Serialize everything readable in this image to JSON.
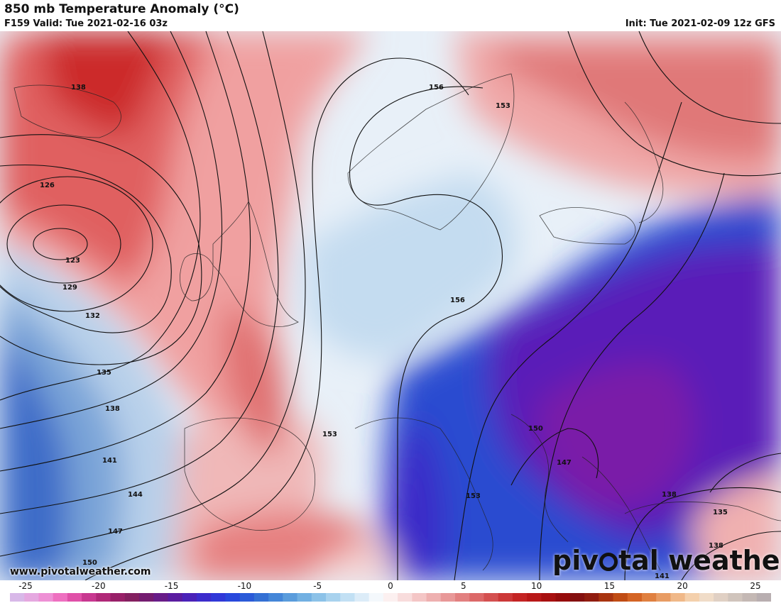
{
  "header": {
    "title": "850 mb Temperature Anomaly (°C)",
    "valid": "F159 Valid: Tue 2021-02-16 03z",
    "init": "Init: Tue 2021-02-09 12z GFS"
  },
  "contour_labels": [
    "138",
    "126",
    "123",
    "129",
    "132",
    "135",
    "138",
    "141",
    "144",
    "147",
    "150",
    "156",
    "153",
    "156",
    "153",
    "153",
    "150",
    "147",
    "138",
    "135",
    "138",
    "141"
  ],
  "footer": {
    "website": "www.pivotalweather.com",
    "brand_part1": "piv",
    "brand_part2": "tal weather"
  },
  "colorbar": {
    "ticks": [
      "-25",
      "-20",
      "-15",
      "-10",
      "-5",
      "0",
      "5",
      "10",
      "15",
      "20",
      "25"
    ],
    "min": -25,
    "max": 25,
    "colors": [
      "#d8b8e8",
      "#e5a8e0",
      "#ee90d5",
      "#ee70c0",
      "#e050a8",
      "#c83890",
      "#b02878",
      "#982068",
      "#842060",
      "#741c70",
      "#681c88",
      "#5a1ca0",
      "#4a22b8",
      "#3c2ccc",
      "#3038d8",
      "#2848dc",
      "#2a5ad8",
      "#3470d4",
      "#4486d8",
      "#5a9cdc",
      "#72b0e2",
      "#8cc2e8",
      "#a8d2ee",
      "#c2e0f4",
      "#dcecf8",
      "#f4f8fc",
      "#fcf0f0",
      "#f8dcdc",
      "#f4c6c6",
      "#eeb0b0",
      "#e89898",
      "#e28080",
      "#dc6868",
      "#d45050",
      "#cc3838",
      "#c42424",
      "#b81818",
      "#a81010",
      "#960c0c",
      "#841010",
      "#901c10",
      "#a83410",
      "#c04c14",
      "#d46424",
      "#e08040",
      "#e89c64",
      "#f0b888",
      "#f4d0ac",
      "#f0dcc8",
      "#e0d0c4",
      "#d0c4bc",
      "#c4b8b4",
      "#b8aeb0"
    ]
  }
}
